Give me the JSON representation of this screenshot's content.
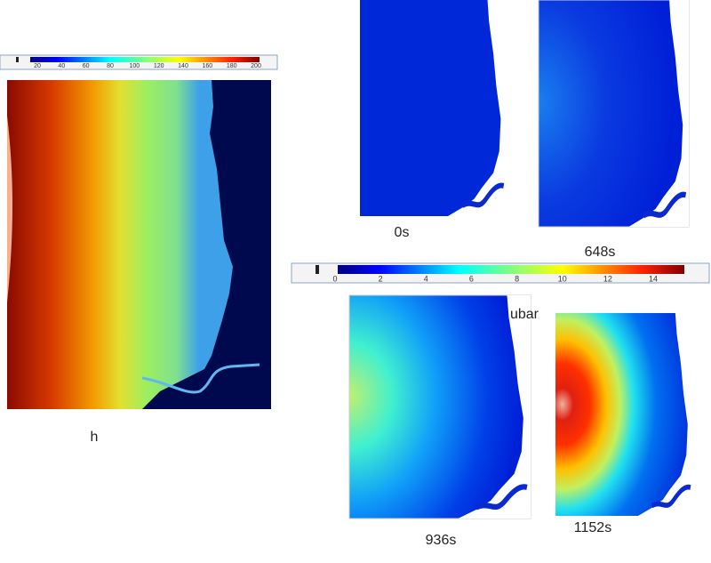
{
  "colorbars": [
    {
      "ticks": [
        20,
        40,
        60,
        80,
        100,
        120,
        140,
        160,
        180,
        200
      ]
    },
    {
      "ticks": [
        0,
        2,
        4,
        6,
        8,
        10,
        12,
        14
      ]
    }
  ],
  "panels": [
    {
      "label": "h"
    },
    {
      "label": "0s"
    },
    {
      "label": "648s"
    },
    {
      "label": "936s"
    },
    {
      "label": "1152s"
    }
  ],
  "colorbar_label": "ubar"
}
